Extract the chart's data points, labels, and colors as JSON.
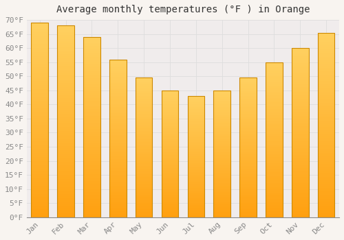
{
  "title": "Average monthly temperatures (°F ) in Orange",
  "months": [
    "Jan",
    "Feb",
    "Mar",
    "Apr",
    "May",
    "Jun",
    "Jul",
    "Aug",
    "Sep",
    "Oct",
    "Nov",
    "Dec"
  ],
  "values": [
    69,
    68,
    64,
    56,
    49.5,
    45,
    43,
    45,
    49.5,
    55,
    60,
    65.5
  ],
  "bar_color_top": "#FFD060",
  "bar_color_bottom": "#FFA010",
  "bar_edge_color": "#CC8800",
  "background_color": "#F8F4F0",
  "plot_bg_color": "#F0ECEC",
  "grid_color": "#DDDDDD",
  "ylim": [
    0,
    70
  ],
  "ytick_step": 5,
  "title_fontsize": 10,
  "tick_fontsize": 8,
  "tick_color": "#888888",
  "font_family": "monospace",
  "bar_width": 0.65
}
